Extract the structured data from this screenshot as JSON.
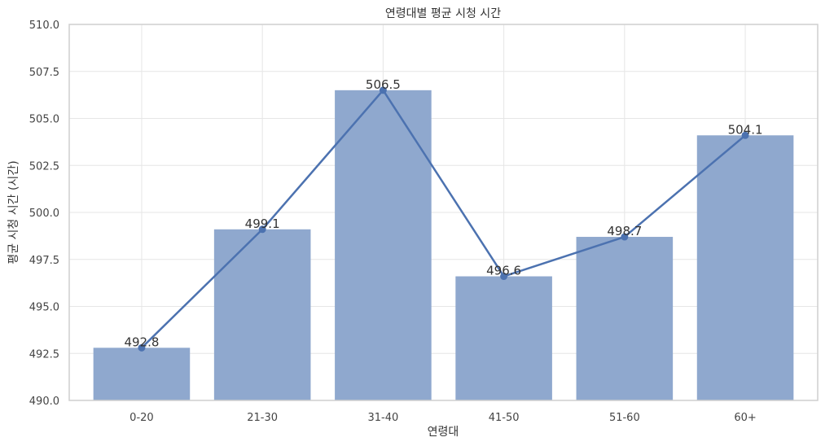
{
  "chart_data": {
    "type": "bar",
    "title": "연령대별 평균 시청 시간",
    "xlabel": "연령대",
    "ylabel": "평균 시청 시간 (시간)",
    "categories": [
      "0-20",
      "21-30",
      "31-40",
      "41-50",
      "51-60",
      "60+"
    ],
    "values": [
      492.8,
      499.1,
      506.5,
      496.6,
      498.7,
      504.1
    ],
    "data_labels": [
      "492.8",
      "499.1",
      "506.5",
      "496.6",
      "498.7",
      "504.1"
    ],
    "overlay": "line-with-markers",
    "ylim": [
      490,
      510
    ],
    "yticks": [
      490.0,
      492.5,
      495.0,
      497.5,
      500.0,
      502.5,
      505.0,
      507.5,
      510.0
    ],
    "ytick_labels": [
      "490.0",
      "492.5",
      "495.0",
      "497.5",
      "500.0",
      "502.5",
      "505.0",
      "507.5",
      "510.0"
    ],
    "grid": true,
    "colors": {
      "bar": "#8fa8ce",
      "line": "#4c72b0",
      "frame": "#cfcfcf",
      "grid": "#e6e6e6"
    }
  }
}
